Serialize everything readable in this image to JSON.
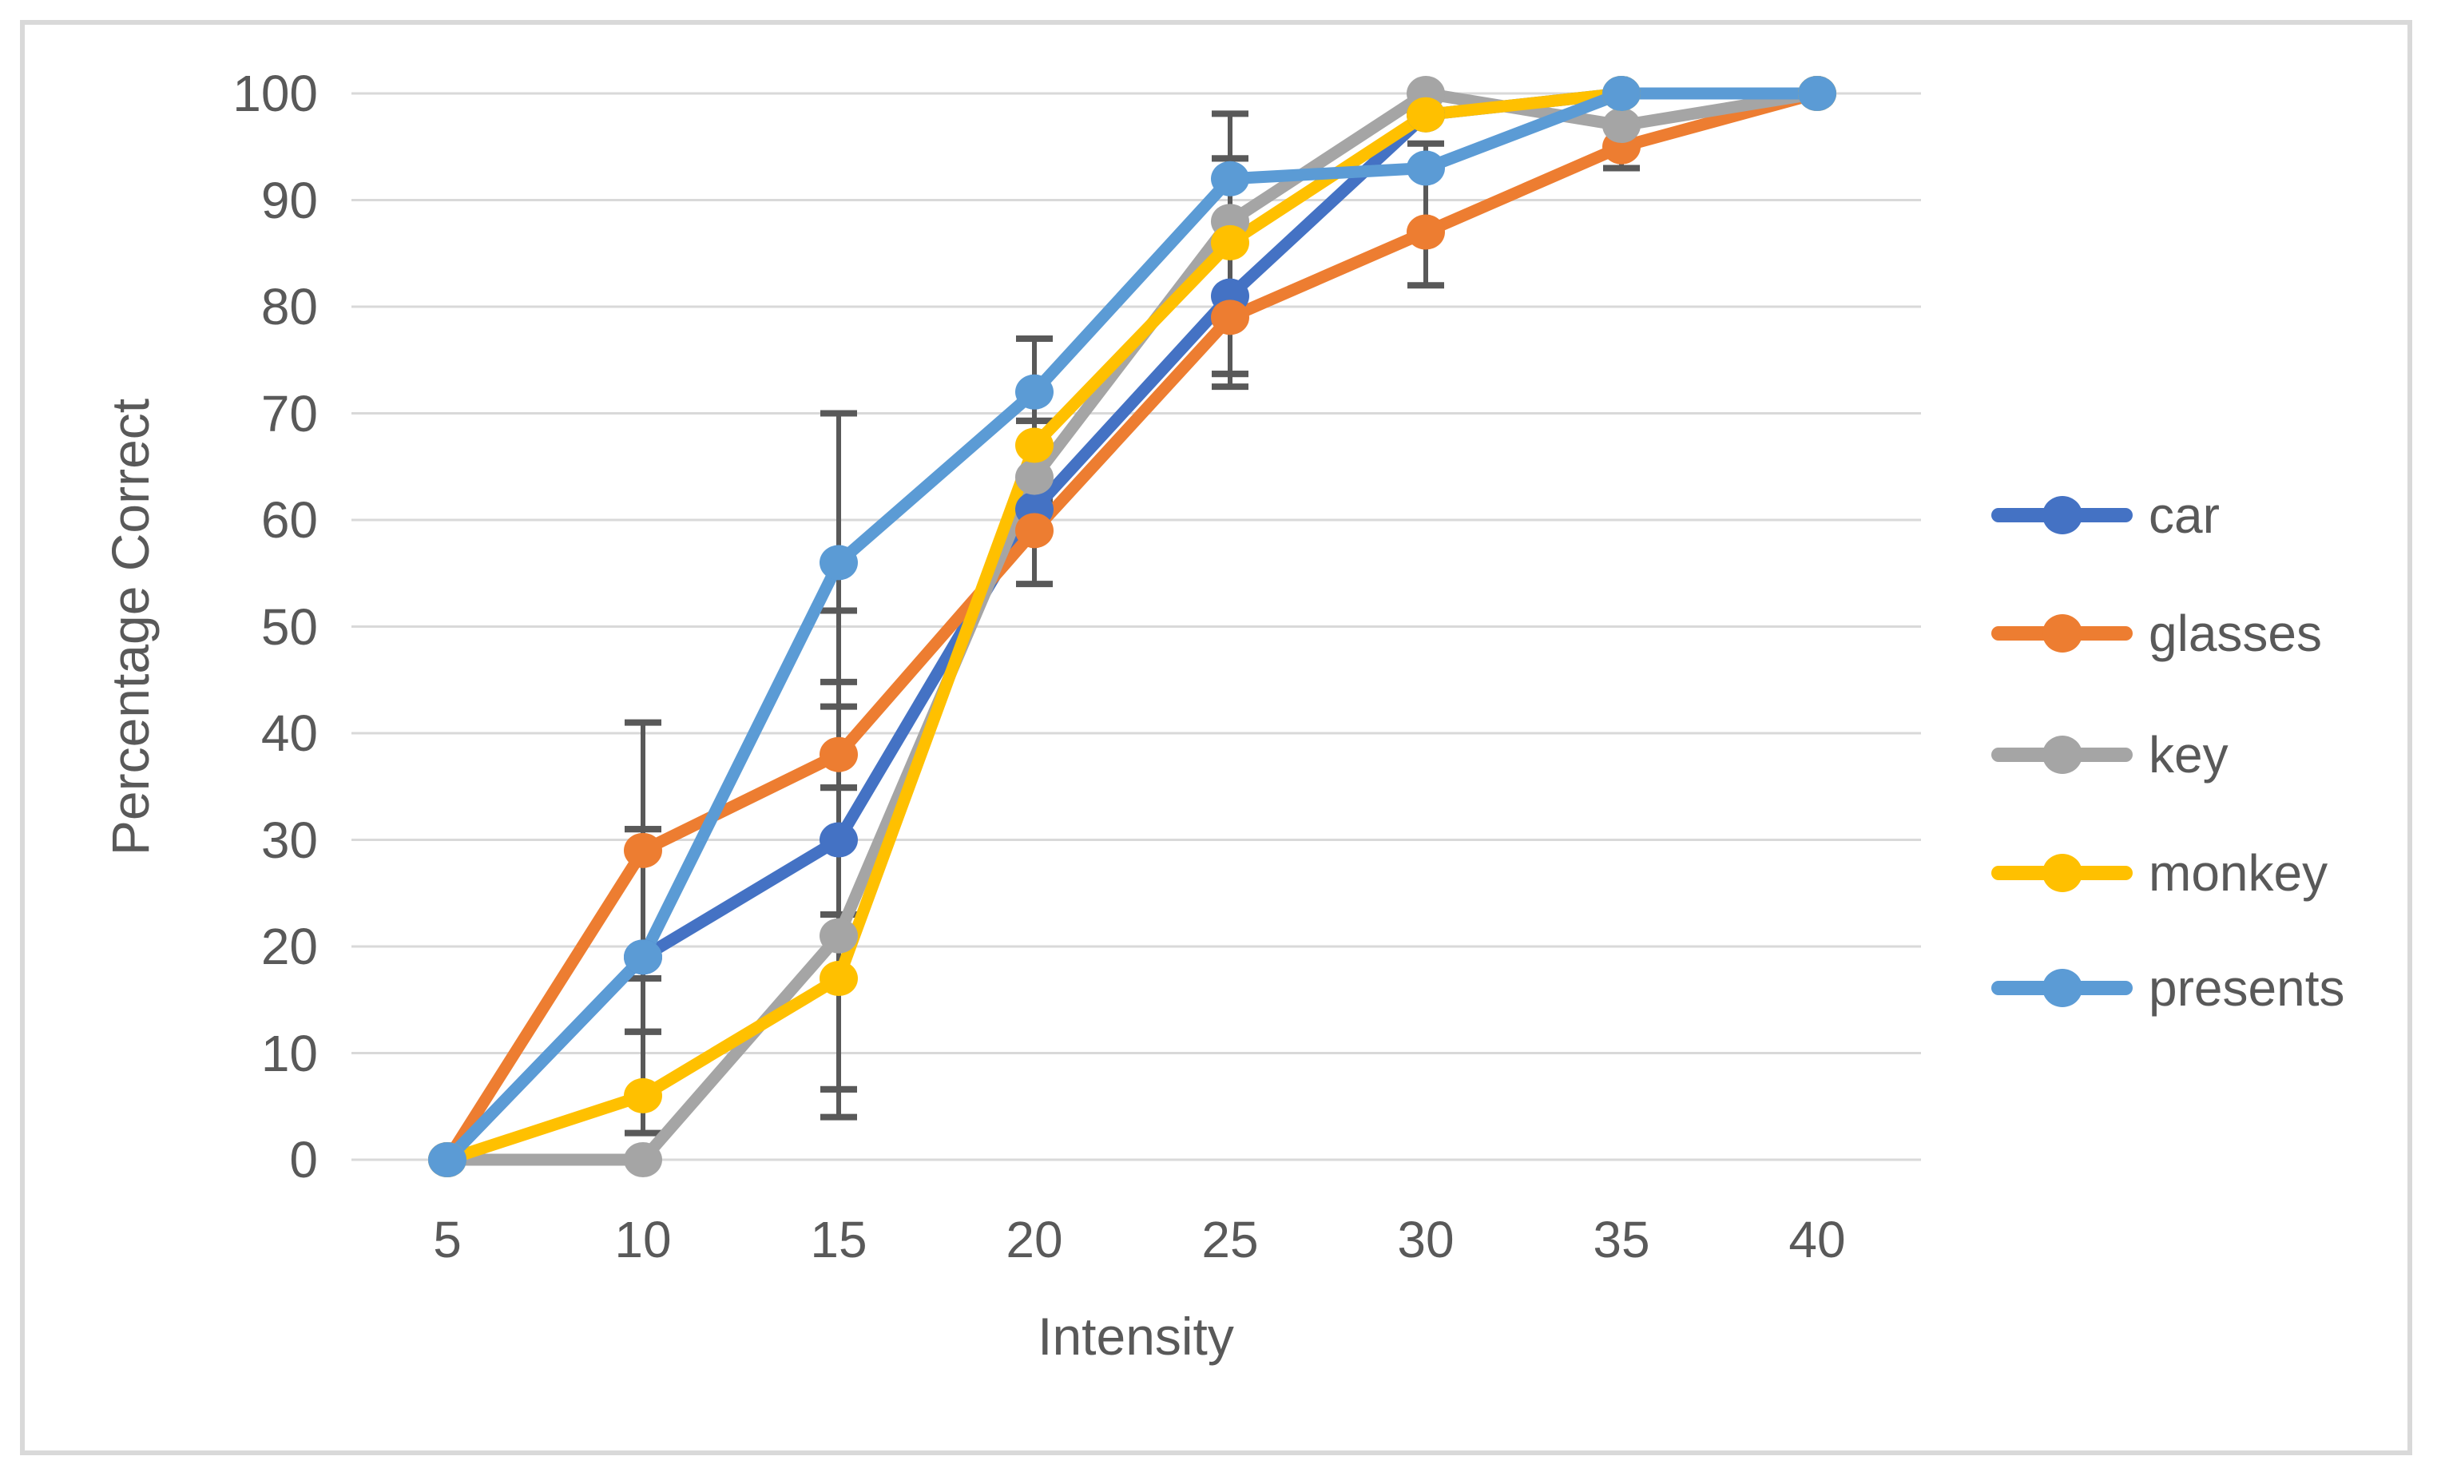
{
  "chart_data": {
    "type": "line",
    "title": "",
    "xlabel": "Intensity",
    "ylabel": "Percentage Correct",
    "x": [
      5,
      10,
      15,
      20,
      25,
      30,
      35,
      40
    ],
    "x_tick_labels": [
      "5",
      "10",
      "15",
      "20",
      "25",
      "30",
      "35",
      "40"
    ],
    "ylim": [
      0,
      100
    ],
    "ytick_step": 10,
    "y_tick_labels": [
      "0",
      "10",
      "20",
      "30",
      "40",
      "50",
      "60",
      "70",
      "80",
      "90",
      "100"
    ],
    "grid": true,
    "legend_position": "right",
    "series": [
      {
        "name": "car",
        "color": "#4472C4",
        "values": [
          0,
          19,
          30,
          61,
          81,
          98,
          100,
          100
        ]
      },
      {
        "name": "glasses",
        "color": "#ED7D31",
        "values": [
          0,
          29,
          38,
          59,
          79,
          87,
          95,
          100
        ]
      },
      {
        "name": "key",
        "color": "#A5A5A5",
        "values": [
          0,
          0,
          21,
          64,
          88,
          100,
          97,
          100
        ]
      },
      {
        "name": "monkey",
        "color": "#FFC000",
        "values": [
          0,
          6,
          17,
          67,
          86,
          98,
          100,
          100
        ]
      },
      {
        "name": "presents",
        "color": "#5B9BD5",
        "values": [
          0,
          19,
          56,
          72,
          92,
          93,
          100,
          100
        ]
      }
    ],
    "error_bars": [
      {
        "x": 10,
        "segments": [
          [
            2.5,
            12
          ],
          [
            12,
            17
          ],
          [
            17,
            31
          ],
          [
            31,
            41
          ]
        ]
      },
      {
        "x": 15,
        "segments": [
          [
            4,
            6.6
          ],
          [
            6.6,
            23
          ],
          [
            23,
            34.9
          ],
          [
            34.9,
            44.8
          ],
          [
            42.5,
            51.5
          ],
          [
            51.5,
            70
          ]
        ]
      },
      {
        "x": 20,
        "segments": [
          [
            54,
            61.8
          ],
          [
            61.8,
            69.3
          ],
          [
            69.3,
            77
          ]
        ]
      },
      {
        "x": 25,
        "segments": [
          [
            72.5,
            73.7
          ],
          [
            73.7,
            93.9
          ],
          [
            93.9,
            98.1
          ]
        ]
      },
      {
        "x": 30,
        "segments": [
          [
            82,
            95.3
          ]
        ]
      },
      {
        "x": 35,
        "segments": [
          [
            93,
            97
          ]
        ]
      }
    ]
  },
  "colors": {
    "grid": "#D9D9D9",
    "frame": "#D9D9D9",
    "text": "#595959",
    "error_bar": "#595959",
    "background": "#FFFFFF"
  }
}
